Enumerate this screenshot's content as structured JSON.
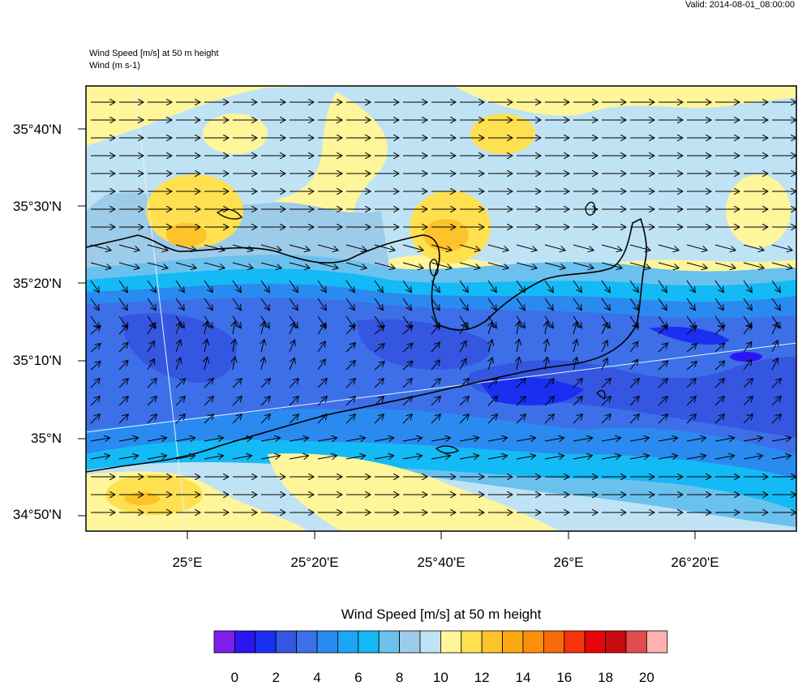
{
  "header": {
    "valid": "Valid: 2014-08-01_08:00:00",
    "title_line1": "Wind Speed [m/s] at 50 m height",
    "title_line2": "Wind   (m s-1)"
  },
  "axes": {
    "lat_labels": [
      "35°40'N",
      "35°30'N",
      "35°20'N",
      "35°10'N",
      "35°N",
      "34°50'N"
    ],
    "lon_labels": [
      "25°E",
      "25°20'E",
      "25°40'E",
      "26°E",
      "26°20'E"
    ]
  },
  "colorbar": {
    "title": "Wind Speed [m/s] at 50 m height",
    "labels": [
      "0",
      "2",
      "4",
      "6",
      "8",
      "10",
      "12",
      "14",
      "16",
      "18",
      "20"
    ],
    "colors": [
      "#7d1fe8",
      "#2b16f2",
      "#1a2ff0",
      "#3456e0",
      "#3c6fe8",
      "#2a8af0",
      "#1ea5f5",
      "#14baf5",
      "#6bc1ee",
      "#9dcbea",
      "#bfe3f5",
      "#fff59b",
      "#ffe050",
      "#fdc32a",
      "#fca810",
      "#fb8f0a",
      "#f96a08",
      "#f6330a",
      "#e5060a",
      "#c60a10",
      "#e14c4c",
      "#fdb1b1"
    ]
  },
  "wind_arrow_direction": "mostly eastward in north and south bands, southward/north-eastward in central low-speed band",
  "colors": {
    "coastline": "#000000",
    "frame": "#000000",
    "arrow": "#000000"
  }
}
